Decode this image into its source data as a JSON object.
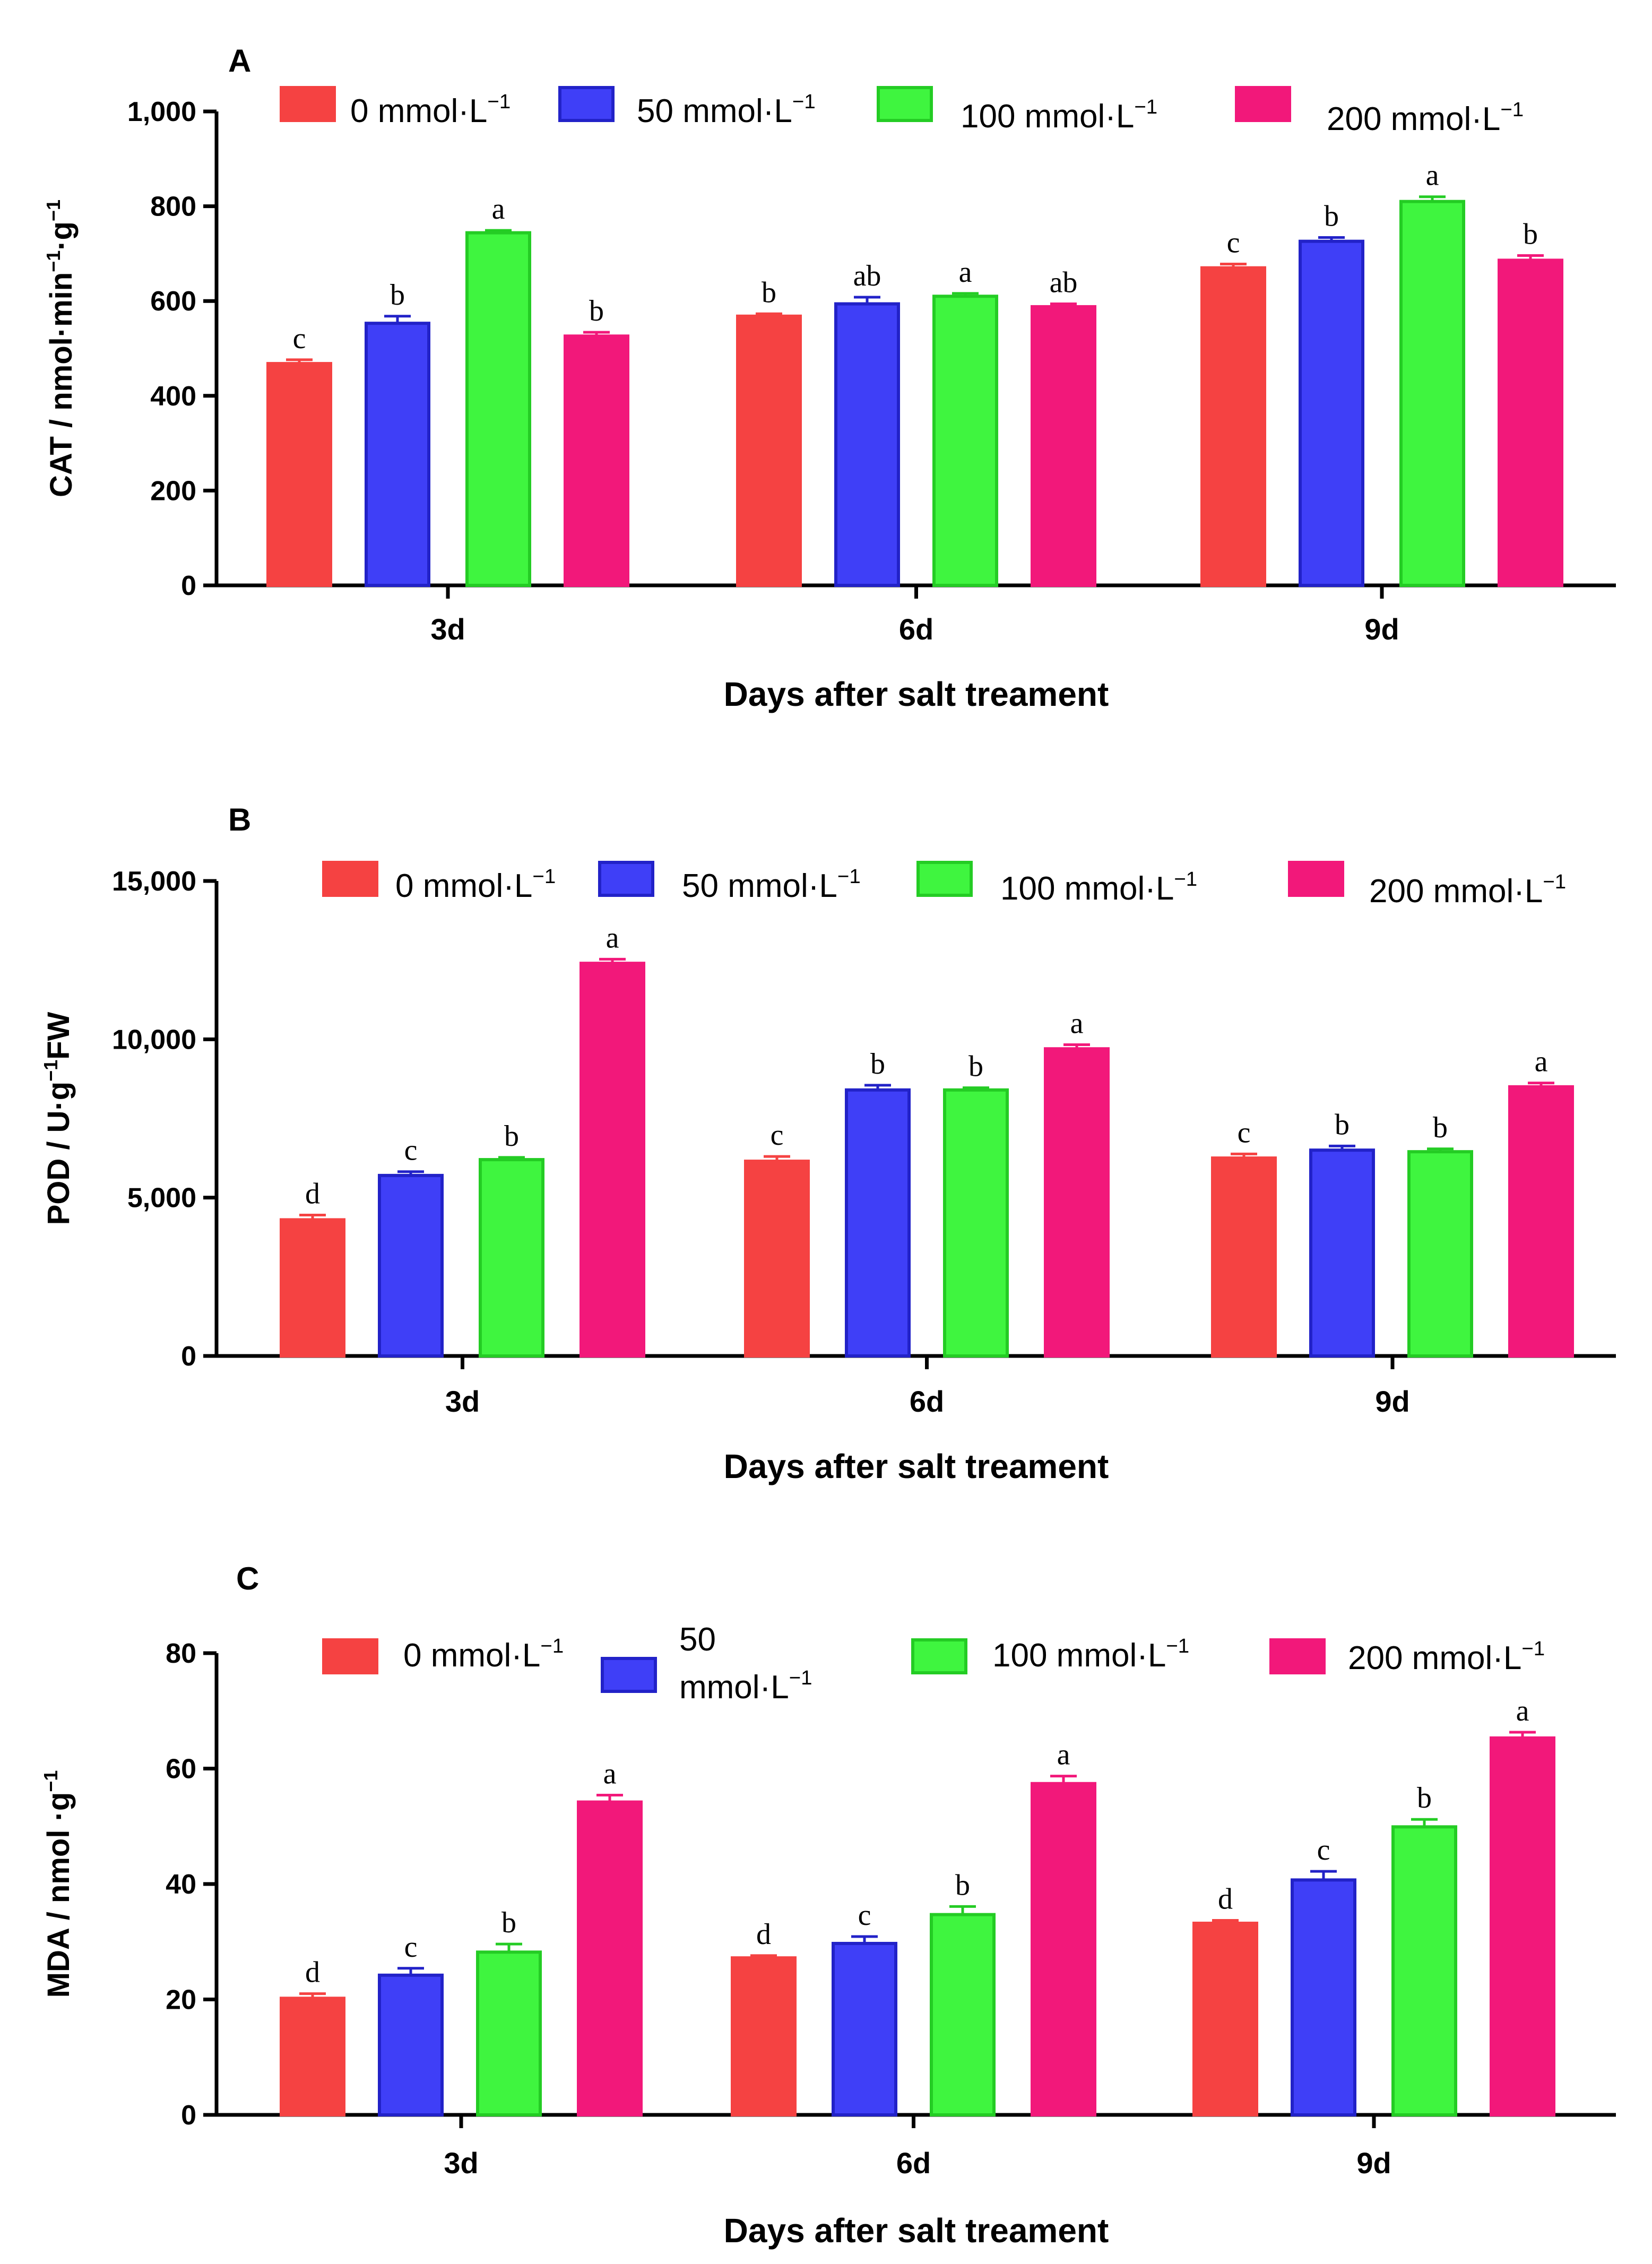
{
  "series_colors": {
    "s0": {
      "fill": "#f54242",
      "stroke": "#f54242"
    },
    "s50": {
      "fill": "#3f3ff7",
      "stroke": "#2222c8"
    },
    "s100": {
      "fill": "#3ff53f",
      "stroke": "#24cc24"
    },
    "s200": {
      "fill": "#f2187a",
      "stroke": "#f2187a"
    }
  },
  "chart_data": [
    {
      "type": "bar",
      "panel": "A",
      "categories": [
        "3d",
        "6d",
        "9d"
      ],
      "xlabel": "Days after salt treament",
      "ylabel": {
        "base": "CAT / nmol·min",
        "sup1": "−1",
        "mid": "·g",
        "sup2": "−1",
        "tail": ""
      },
      "ylim": [
        0,
        1000
      ],
      "yticks": [
        0,
        200,
        400,
        600,
        800,
        1000
      ],
      "ytick_labels": [
        "0",
        "200",
        "400",
        "600",
        "800",
        "1,000"
      ],
      "series": [
        {
          "key": "s0",
          "legend": "0 mmol·L",
          "legend_sup": "−1",
          "values": [
            468,
            568,
            670
          ],
          "errors": [
            8,
            5,
            8
          ],
          "letters": [
            "c",
            "b",
            "c"
          ]
        },
        {
          "key": "s50",
          "legend": "50 mmol·L",
          "legend_sup": "−1",
          "values": [
            553,
            594,
            726
          ],
          "errors": [
            15,
            14,
            8
          ],
          "letters": [
            "b",
            "ab",
            "b"
          ]
        },
        {
          "key": "s100",
          "legend": "100 mmol·L",
          "legend_sup": "−1",
          "values": [
            744,
            610,
            810
          ],
          "errors": [
            5,
            6,
            10
          ],
          "letters": [
            "a",
            "a",
            "a"
          ]
        },
        {
          "key": "s200",
          "legend": "200 mmol·L",
          "legend_sup": "−1",
          "values": [
            526,
            588,
            686
          ],
          "errors": [
            8,
            6,
            10
          ],
          "letters": [
            "b",
            "ab",
            "b"
          ]
        }
      ]
    },
    {
      "type": "bar",
      "panel": "B",
      "categories": [
        "3d",
        "6d",
        "9d"
      ],
      "xlabel": "Days after salt treament",
      "ylabel": {
        "base": "POD / U·g",
        "sup1": "−1",
        "mid": "FW",
        "sup2": "",
        "tail": ""
      },
      "ylim": [
        0,
        15000
      ],
      "yticks": [
        0,
        5000,
        10000,
        15000
      ],
      "ytick_labels": [
        "0",
        "5,000",
        "10,000",
        "15,000"
      ],
      "series": [
        {
          "key": "s0",
          "legend": "0 mmol·L",
          "legend_sup": "−1",
          "values": [
            4300,
            6150,
            6250
          ],
          "errors": [
            150,
            150,
            130
          ],
          "letters": [
            "d",
            "c",
            "c"
          ]
        },
        {
          "key": "s50",
          "legend": "50 mmol·L",
          "legend_sup": "−1",
          "values": [
            5700,
            8400,
            6500
          ],
          "errors": [
            120,
            150,
            130
          ],
          "letters": [
            "c",
            "b",
            "b"
          ]
        },
        {
          "key": "s100",
          "legend": "100 mmol·L",
          "legend_sup": "−1",
          "values": [
            6200,
            8400,
            6450
          ],
          "errors": [
            70,
            70,
            90
          ],
          "letters": [
            "b",
            "b",
            "b"
          ]
        },
        {
          "key": "s200",
          "legend": "200 mmol·L",
          "legend_sup": "−1",
          "values": [
            12400,
            9700,
            8500
          ],
          "errors": [
            130,
            130,
            120
          ],
          "letters": [
            "a",
            "a",
            "a"
          ]
        }
      ]
    },
    {
      "type": "bar",
      "panel": "C",
      "categories": [
        "3d",
        "6d",
        "9d"
      ],
      "xlabel": "Days after salt treament",
      "ylabel": {
        "base": "MDA / nmol ·g",
        "sup1": "−1",
        "mid": "",
        "sup2": "",
        "tail": ""
      },
      "ylim": [
        0,
        80
      ],
      "yticks": [
        0,
        20,
        40,
        60,
        80
      ],
      "ytick_labels": [
        "0",
        "20",
        "40",
        "60",
        "80"
      ],
      "series": [
        {
          "key": "s0",
          "legend": "0 mmol·L",
          "legend_sup": "−1",
          "values": [
            20.2,
            27.2,
            33.2
          ],
          "errors": [
            0.8,
            0.4,
            0.5
          ],
          "letters": [
            "d",
            "d",
            "d"
          ]
        },
        {
          "key": "s50",
          "legend": "50 mmol·L",
          "legend_sup": "−1",
          "legend_wrapped": true,
          "legend_line1": "50",
          "legend_line2": "mmol·L",
          "values": [
            24.2,
            29.7,
            40.7
          ],
          "errors": [
            1.2,
            1.2,
            1.5
          ],
          "letters": [
            "c",
            "c",
            "c"
          ]
        },
        {
          "key": "s100",
          "legend": "100 mmol·L",
          "legend_sup": "−1",
          "values": [
            28.2,
            34.7,
            49.9
          ],
          "errors": [
            1.4,
            1.4,
            1.3
          ],
          "letters": [
            "b",
            "b",
            "b"
          ]
        },
        {
          "key": "s200",
          "legend": "200 mmol·L",
          "legend_sup": "−1",
          "values": [
            54.2,
            57.4,
            65.3
          ],
          "errors": [
            1.2,
            1.3,
            1.0
          ],
          "letters": [
            "a",
            "a",
            "a"
          ]
        }
      ]
    }
  ]
}
